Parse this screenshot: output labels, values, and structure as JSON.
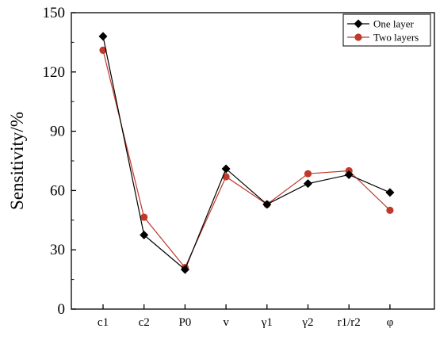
{
  "chart_data": {
    "type": "line",
    "title": "",
    "xlabel": "",
    "ylabel": "Sensitivity/%",
    "ylim": [
      0,
      150
    ],
    "yticks": [
      0,
      30,
      60,
      90,
      120,
      150
    ],
    "categories": [
      "c1",
      "c2",
      "P0",
      "v",
      "γ1",
      "γ2",
      "r1/r2",
      "φ"
    ],
    "legend_position": "top-right",
    "grid": false,
    "series": [
      {
        "name": "One layer",
        "marker": "diamond",
        "color": "#000000",
        "values": [
          138,
          37.5,
          20,
          71,
          53,
          63.5,
          68,
          59
        ]
      },
      {
        "name": "Two layers",
        "marker": "circle",
        "color": "#c0392b",
        "values": [
          131,
          46.5,
          21,
          67,
          53,
          68.5,
          70,
          50
        ]
      }
    ]
  }
}
